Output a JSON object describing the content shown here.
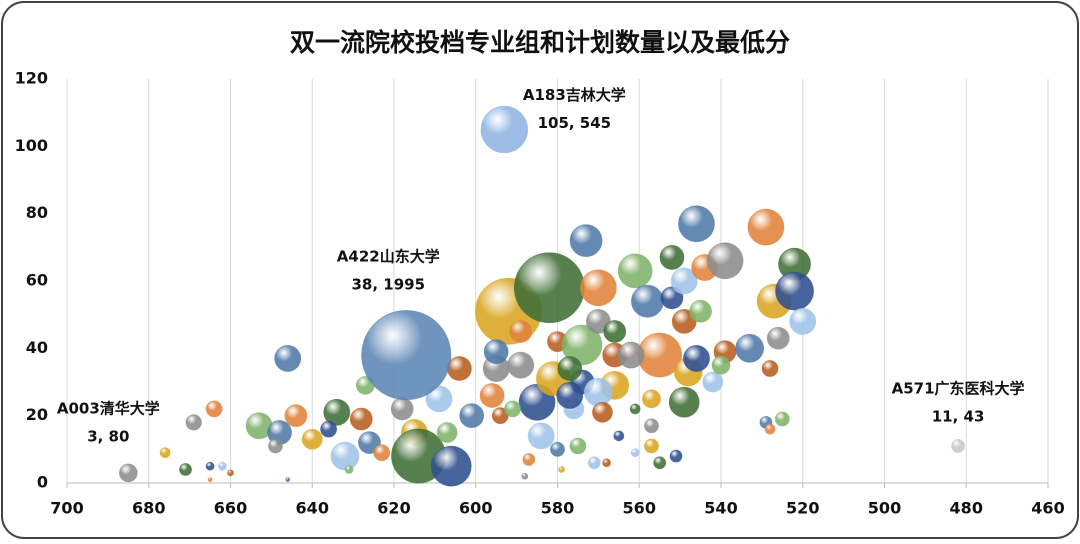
{
  "chart_data": {
    "type": "bubble",
    "title": "双一流院校投档专业组和计划数量以及最低分",
    "xlim": [
      700,
      460
    ],
    "xticks": [
      700,
      680,
      660,
      640,
      620,
      600,
      580,
      560,
      540,
      520,
      500,
      480,
      460
    ],
    "ylim": [
      0,
      120
    ],
    "yticks": [
      0,
      20,
      40,
      60,
      80,
      100,
      120
    ],
    "grid": "x",
    "vary_colors": true,
    "colors": [
      "#4e79a7",
      "#e0823a",
      "#8c8c8c",
      "#d9a520",
      "#3f6e35",
      "#2f4f8f",
      "#9fc3e9",
      "#b85c1e",
      "#7fb36a"
    ],
    "x": [
      646,
      664,
      669,
      676,
      671,
      665,
      662,
      660,
      653,
      648,
      644,
      649,
      640,
      634,
      636,
      632,
      628,
      627,
      626,
      623,
      618,
      615,
      614,
      606,
      609,
      604,
      607,
      601,
      596,
      595,
      592,
      582,
      585,
      584,
      580,
      574,
      573,
      570,
      570,
      566,
      566,
      574,
      576,
      566,
      561,
      558,
      555,
      562,
      557,
      552,
      552,
      549,
      549,
      545,
      546,
      544,
      539,
      548,
      549,
      546,
      542,
      539,
      540,
      533,
      529,
      526,
      527,
      522,
      522,
      520,
      528,
      525,
      529,
      528,
      557,
      557,
      555,
      551,
      571,
      568,
      575,
      580,
      587,
      588,
      579,
      561,
      565,
      561,
      594,
      591,
      595,
      589,
      589,
      581,
      577,
      577,
      570,
      569,
      631,
      646,
      665
    ],
    "values": [
      37,
      22,
      18,
      9,
      4,
      5,
      5,
      3,
      17,
      15,
      20,
      11,
      13,
      21,
      16,
      8,
      19,
      29,
      12,
      9,
      22,
      15,
      8,
      5,
      25,
      34,
      15,
      20,
      26,
      34,
      51,
      58,
      24,
      14,
      42,
      41,
      72,
      58,
      48,
      29,
      45,
      30,
      22,
      38,
      63,
      54,
      38,
      38,
      25,
      67,
      55,
      60,
      48,
      51,
      77,
      64,
      66,
      33,
      24,
      37,
      30,
      39,
      35,
      40,
      76,
      43,
      54,
      65,
      57,
      48,
      34,
      19,
      18,
      16,
      17,
      11,
      6,
      8,
      6,
      6,
      11,
      10,
      7,
      2,
      4,
      22,
      14,
      9,
      20,
      22,
      39,
      45,
      35,
      31,
      34,
      26,
      27,
      21,
      4,
      1,
      1
    ],
    "sizes": [
      170,
      64,
      60,
      25,
      36,
      16,
      16,
      9,
      170,
      144,
      121,
      49,
      100,
      170,
      64,
      196,
      121,
      81,
      121,
      64,
      121,
      170,
      730,
      400,
      170,
      144,
      100,
      144,
      144,
      170,
      1090,
      1225,
      324,
      170,
      100,
      400,
      256,
      324,
      144,
      196,
      121,
      144,
      100,
      144,
      289,
      256,
      484,
      170,
      81,
      144,
      121,
      170,
      144,
      121,
      324,
      170,
      324,
      196,
      225,
      170,
      100,
      121,
      81,
      196,
      324,
      121,
      289,
      256,
      361,
      170,
      64,
      49,
      36,
      25,
      49,
      49,
      36,
      36,
      36,
      16,
      64,
      49,
      36,
      9,
      9,
      25,
      25,
      16,
      64,
      64,
      144,
      121,
      170,
      289,
      144,
      170,
      196,
      100,
      16,
      4,
      4
    ],
    "annotations": [
      {
        "text": "A003清华大学",
        "label": "3, 80",
        "x": 685,
        "y": 3,
        "size": 80,
        "color": "#8c8c8c"
      },
      {
        "text": "A422山东大学",
        "label": "38, 1995",
        "x": 617,
        "y": 38,
        "size": 1995,
        "color": "#5b85b5"
      },
      {
        "text": "A183吉林大学",
        "label": "105, 545",
        "x": 593,
        "y": 105,
        "size": 545,
        "color": "#8fb4e3"
      },
      {
        "text": "A571广东医科大学",
        "label": "11, 43",
        "x": 482,
        "y": 11,
        "size": 43,
        "color": "#c8c8c8"
      }
    ]
  }
}
